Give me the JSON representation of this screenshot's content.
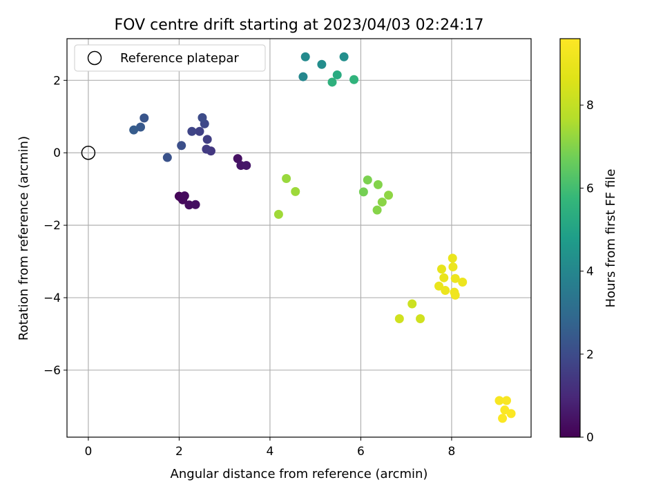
{
  "chart_data": {
    "type": "scatter",
    "title": "FOV centre drift starting at 2023/04/03 02:24:17",
    "xlabel": "Angular distance from reference (arcmin)",
    "ylabel": "Rotation from reference (arcmin)",
    "xlim": [
      -0.47,
      9.75
    ],
    "ylim": [
      -7.85,
      3.15
    ],
    "xticks": [
      0,
      2,
      4,
      6,
      8
    ],
    "yticks": [
      -6,
      -4,
      -2,
      0,
      2
    ],
    "grid": true,
    "legend": {
      "position": "upper-left",
      "entries": [
        "Reference platepar"
      ]
    },
    "reference_point": {
      "x": 0,
      "y": 0
    },
    "colorbar": {
      "label": "Hours from first FF file",
      "range": [
        0,
        9.6
      ],
      "ticks": [
        0,
        2,
        4,
        6,
        8
      ],
      "colormap": "viridis"
    },
    "points": [
      {
        "x": 2.0,
        "y": -1.2,
        "c": 0.1
      },
      {
        "x": 2.05,
        "y": -1.25,
        "c": 0.15
      },
      {
        "x": 2.08,
        "y": -1.3,
        "c": 0.2
      },
      {
        "x": 2.12,
        "y": -1.19,
        "c": 0.25
      },
      {
        "x": 2.22,
        "y": -1.44,
        "c": 0.3
      },
      {
        "x": 2.36,
        "y": -1.43,
        "c": 0.35
      },
      {
        "x": 3.29,
        "y": -0.16,
        "c": 0.4
      },
      {
        "x": 3.36,
        "y": -0.35,
        "c": 0.5
      },
      {
        "x": 3.48,
        "y": -0.35,
        "c": 0.55
      },
      {
        "x": 2.7,
        "y": 0.05,
        "c": 1.4
      },
      {
        "x": 2.6,
        "y": 0.1,
        "c": 1.5
      },
      {
        "x": 2.62,
        "y": 0.37,
        "c": 1.6
      },
      {
        "x": 2.45,
        "y": 0.59,
        "c": 1.7
      },
      {
        "x": 2.28,
        "y": 0.59,
        "c": 1.8
      },
      {
        "x": 2.56,
        "y": 0.8,
        "c": 1.9
      },
      {
        "x": 2.51,
        "y": 0.97,
        "c": 2.0
      },
      {
        "x": 2.05,
        "y": 0.2,
        "c": 2.1
      },
      {
        "x": 1.74,
        "y": -0.13,
        "c": 2.2
      },
      {
        "x": 1.23,
        "y": 0.96,
        "c": 2.3
      },
      {
        "x": 1.15,
        "y": 0.71,
        "c": 2.4
      },
      {
        "x": 1.0,
        "y": 0.63,
        "c": 2.5
      },
      {
        "x": 4.73,
        "y": 2.1,
        "c": 4.0
      },
      {
        "x": 4.78,
        "y": 2.65,
        "c": 4.1
      },
      {
        "x": 5.14,
        "y": 2.44,
        "c": 4.2
      },
      {
        "x": 5.63,
        "y": 2.65,
        "c": 4.3
      },
      {
        "x": 5.48,
        "y": 2.15,
        "c": 5.3
      },
      {
        "x": 5.37,
        "y": 1.95,
        "c": 5.5
      },
      {
        "x": 5.85,
        "y": 2.02,
        "c": 5.6
      },
      {
        "x": 6.06,
        "y": -1.08,
        "c": 6.8
      },
      {
        "x": 6.15,
        "y": -0.75,
        "c": 6.9
      },
      {
        "x": 6.38,
        "y": -0.88,
        "c": 7.0
      },
      {
        "x": 6.36,
        "y": -1.58,
        "c": 7.05
      },
      {
        "x": 6.47,
        "y": -1.36,
        "c": 7.1
      },
      {
        "x": 6.61,
        "y": -1.17,
        "c": 7.15
      },
      {
        "x": 4.36,
        "y": -0.71,
        "c": 7.3
      },
      {
        "x": 4.56,
        "y": -1.07,
        "c": 7.35
      },
      {
        "x": 4.19,
        "y": -1.7,
        "c": 7.4
      },
      {
        "x": 7.13,
        "y": -4.17,
        "c": 8.2
      },
      {
        "x": 6.85,
        "y": -4.58,
        "c": 8.3
      },
      {
        "x": 7.31,
        "y": -4.58,
        "c": 8.3
      },
      {
        "x": 7.78,
        "y": -3.21,
        "c": 8.9
      },
      {
        "x": 7.83,
        "y": -3.45,
        "c": 8.95
      },
      {
        "x": 7.72,
        "y": -3.68,
        "c": 9.0
      },
      {
        "x": 7.86,
        "y": -3.8,
        "c": 9.05
      },
      {
        "x": 8.02,
        "y": -2.91,
        "c": 9.0
      },
      {
        "x": 8.03,
        "y": -3.15,
        "c": 9.05
      },
      {
        "x": 8.08,
        "y": -3.47,
        "c": 9.1
      },
      {
        "x": 8.24,
        "y": -3.57,
        "c": 9.1
      },
      {
        "x": 8.06,
        "y": -3.85,
        "c": 9.15
      },
      {
        "x": 8.08,
        "y": -3.93,
        "c": 9.2
      },
      {
        "x": 9.05,
        "y": -6.84,
        "c": 9.4
      },
      {
        "x": 9.21,
        "y": -6.84,
        "c": 9.45
      },
      {
        "x": 9.17,
        "y": -7.1,
        "c": 9.5
      },
      {
        "x": 9.31,
        "y": -7.2,
        "c": 9.55
      },
      {
        "x": 9.12,
        "y": -7.33,
        "c": 9.55
      }
    ]
  }
}
